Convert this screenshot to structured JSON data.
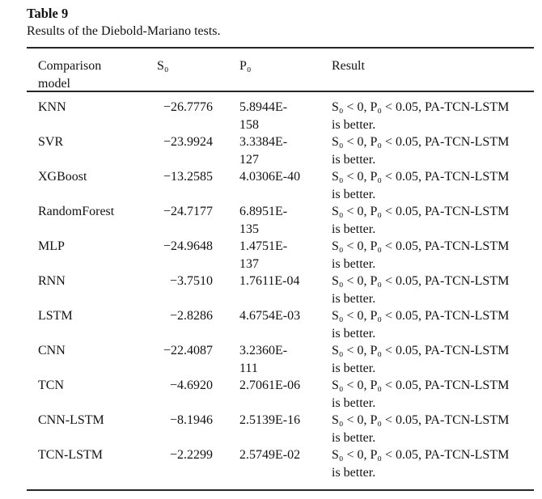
{
  "colors": {
    "background": "#ffffff",
    "text": "#121212",
    "rule": "#262626"
  },
  "table": {
    "label": "Table 9",
    "caption": "Results of the Diebold-Mariano tests.",
    "columns": [
      "Comparison\nmodel",
      "S₀",
      "P₀",
      "Result"
    ],
    "rows": [
      {
        "model": "KNN",
        "s0": "−26.7776",
        "p0": "5.8944E-\n158",
        "result": "S₀ < 0, P₀ < 0.05, PA-TCN-LSTM\nis better."
      },
      {
        "model": "SVR",
        "s0": "−23.9924",
        "p0": "3.3384E-\n127",
        "result": "S₀ < 0, P₀ < 0.05, PA-TCN-LSTM\nis better."
      },
      {
        "model": "XGBoost",
        "s0": "−13.2585",
        "p0": "4.0306E-40",
        "result": "S₀ < 0, P₀ < 0.05, PA-TCN-LSTM\nis better."
      },
      {
        "model": "RandomForest",
        "s0": "−24.7177",
        "p0": "6.8951E-\n135",
        "result": "S₀ < 0, P₀ < 0.05, PA-TCN-LSTM\nis better."
      },
      {
        "model": "MLP",
        "s0": "−24.9648",
        "p0": "1.4751E-\n137",
        "result": "S₀ < 0, P₀ < 0.05, PA-TCN-LSTM\nis better."
      },
      {
        "model": "RNN",
        "s0": "−3.7510",
        "p0": "1.7611E-04",
        "result": "S₀ < 0, P₀ < 0.05, PA-TCN-LSTM\nis better."
      },
      {
        "model": "LSTM",
        "s0": "−2.8286",
        "p0": "4.6754E-03",
        "result": "S₀ < 0, P₀ < 0.05, PA-TCN-LSTM\nis better."
      },
      {
        "model": "CNN",
        "s0": "−22.4087",
        "p0": "3.2360E-\n111",
        "result": "S₀ < 0, P₀ < 0.05, PA-TCN-LSTM\nis better."
      },
      {
        "model": "TCN",
        "s0": "−4.6920",
        "p0": "2.7061E-06",
        "result": "S₀ < 0, P₀ < 0.05, PA-TCN-LSTM\nis better."
      },
      {
        "model": "CNN-LSTM",
        "s0": "−8.1946",
        "p0": "2.5139E-16",
        "result": "S₀ < 0, P₀ < 0.05, PA-TCN-LSTM\nis better."
      },
      {
        "model": "TCN-LSTM",
        "s0": "−2.2299",
        "p0": "2.5749E-02",
        "result": "S₀ < 0, P₀ < 0.05, PA-TCN-LSTM\nis better."
      }
    ]
  }
}
